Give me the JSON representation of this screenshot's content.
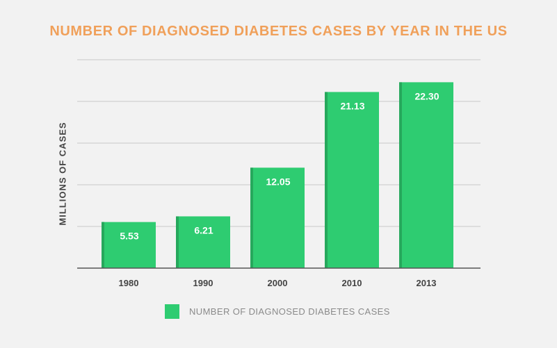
{
  "chart_data": {
    "type": "bar",
    "title": "NUMBER OF DIAGNOSED DIABETES CASES BY YEAR IN THE US",
    "xlabel": "",
    "ylabel": "MILLIONS OF CASES",
    "categories": [
      "1980",
      "1990",
      "2000",
      "2010",
      "2013"
    ],
    "series": [
      {
        "name": "NUMBER OF DIAGNOSED DIABETES CASES",
        "values": [
          5.53,
          6.21,
          12.05,
          21.13,
          22.3
        ],
        "labels": [
          "5.53",
          "6.21",
          "12.05",
          "21.13",
          "22.30"
        ]
      }
    ],
    "ylim": [
      0,
      25
    ],
    "grid": true,
    "legend_position": "bottom",
    "colors": {
      "bar": "#2ecc71",
      "bar_edge": "#26a85c",
      "title": "#f0a05a",
      "grid": "#c8c8c8",
      "axis": "#555555",
      "background": "#f2f2f2"
    }
  }
}
